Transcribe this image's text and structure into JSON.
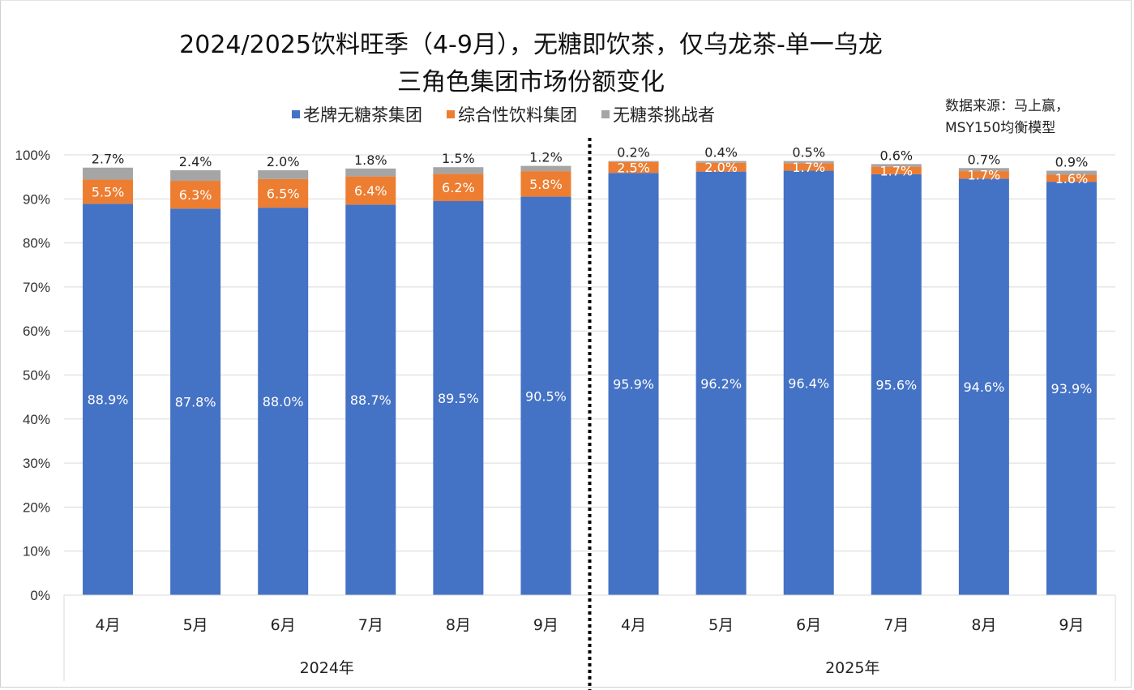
{
  "chart_data": {
    "type": "bar",
    "stacked": true,
    "title_line1": "2024/2025饮料旺季（4-9月），无糖即饮茶，仅乌龙茶-单一乌龙",
    "title_line2": "三角色集团市场份额变化",
    "source_line1": "数据来源：马上赢，",
    "source_line2": "MSY150均衡模型",
    "categories": [
      "4月",
      "5月",
      "6月",
      "7月",
      "8月",
      "9月",
      "4月",
      "5月",
      "6月",
      "7月",
      "8月",
      "9月"
    ],
    "groups": [
      {
        "label": "2024年",
        "count": 6
      },
      {
        "label": "2025年",
        "count": 6
      }
    ],
    "series": [
      {
        "name": "老牌无糖茶集团",
        "color": "#4472c4",
        "values": [
          88.9,
          87.8,
          88.0,
          88.7,
          89.5,
          90.5,
          95.9,
          96.2,
          96.4,
          95.6,
          94.6,
          93.9
        ],
        "labels": [
          "88.9%",
          "87.8%",
          "88.0%",
          "88.7%",
          "89.5%",
          "90.5%",
          "95.9%",
          "96.2%",
          "96.4%",
          "95.6%",
          "94.6%",
          "93.9%"
        ]
      },
      {
        "name": "综合性饮料集团",
        "color": "#ed7d31",
        "values": [
          5.5,
          6.3,
          6.5,
          6.4,
          6.2,
          5.8,
          2.5,
          2.0,
          1.7,
          1.7,
          1.7,
          1.6
        ],
        "labels": [
          "5.5%",
          "6.3%",
          "6.5%",
          "6.4%",
          "6.2%",
          "5.8%",
          "2.5%",
          "2.0%",
          "1.7%",
          "1.7%",
          "1.7%",
          "1.6%"
        ]
      },
      {
        "name": "无糖茶挑战者",
        "color": "#a5a5a5",
        "values": [
          2.7,
          2.4,
          2.0,
          1.8,
          1.5,
          1.2,
          0.2,
          0.4,
          0.5,
          0.6,
          0.7,
          0.9
        ],
        "labels": [
          "2.7%",
          "2.4%",
          "2.0%",
          "1.8%",
          "1.5%",
          "1.2%",
          "0.2%",
          "0.4%",
          "0.5%",
          "0.6%",
          "0.7%",
          "0.9%"
        ]
      }
    ],
    "ylim": [
      0,
      100
    ],
    "yticks": [
      "0%",
      "10%",
      "20%",
      "30%",
      "40%",
      "50%",
      "60%",
      "70%",
      "80%",
      "90%",
      "100%"
    ],
    "grid": true,
    "legend_position": "top",
    "xlabel": "",
    "ylabel": ""
  }
}
